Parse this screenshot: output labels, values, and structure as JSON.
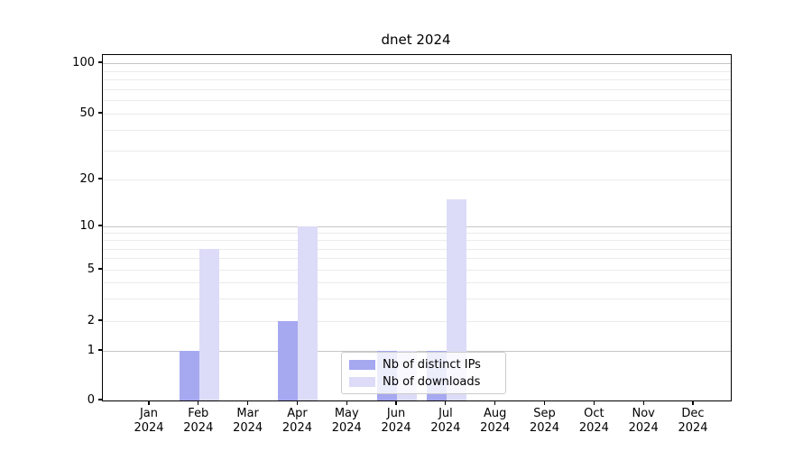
{
  "chart_data": {
    "type": "bar",
    "title": "dnet 2024",
    "scale": "symlog",
    "grid": true,
    "ylim": [
      0,
      115
    ],
    "categories": [
      "Jan 2024",
      "Feb 2024",
      "Mar 2024",
      "Apr 2024",
      "May 2024",
      "Jun 2024",
      "Jul 2024",
      "Aug 2024",
      "Sep 2024",
      "Oct 2024",
      "Nov 2024",
      "Dec 2024"
    ],
    "x_tick_months": [
      "Jan",
      "Feb",
      "Mar",
      "Apr",
      "May",
      "Jun",
      "Jul",
      "Aug",
      "Sep",
      "Oct",
      "Nov",
      "Dec"
    ],
    "x_tick_year": "2024",
    "series": [
      {
        "name": "Nb of distinct IPs",
        "color": "#a6a8f0",
        "values": [
          0,
          1,
          0,
          2,
          0,
          1,
          1,
          0,
          0,
          0,
          0,
          0
        ]
      },
      {
        "name": "Nb of downloads",
        "color": "#dcdcf8",
        "values": [
          0,
          7,
          0,
          10,
          0,
          1,
          15,
          0,
          0,
          0,
          0,
          0
        ]
      }
    ],
    "y_axis": {
      "tick_values": [
        100,
        50,
        20,
        10,
        5,
        2,
        1,
        0
      ],
      "tick_labels": [
        "100",
        "50",
        "20",
        "10",
        "5",
        "2",
        "1",
        "0"
      ],
      "major_grid_values": [
        1,
        10,
        100
      ],
      "minor_grid_values": [
        2,
        3,
        4,
        5,
        6,
        7,
        8,
        9,
        20,
        30,
        40,
        50,
        60,
        70,
        80,
        90
      ]
    },
    "legend_position": "lower center",
    "colors": {
      "major_grid": "#c6c6c6",
      "minor_grid": "#ebebeb",
      "axis": "#000000",
      "legend_border": "#cccccc"
    }
  }
}
